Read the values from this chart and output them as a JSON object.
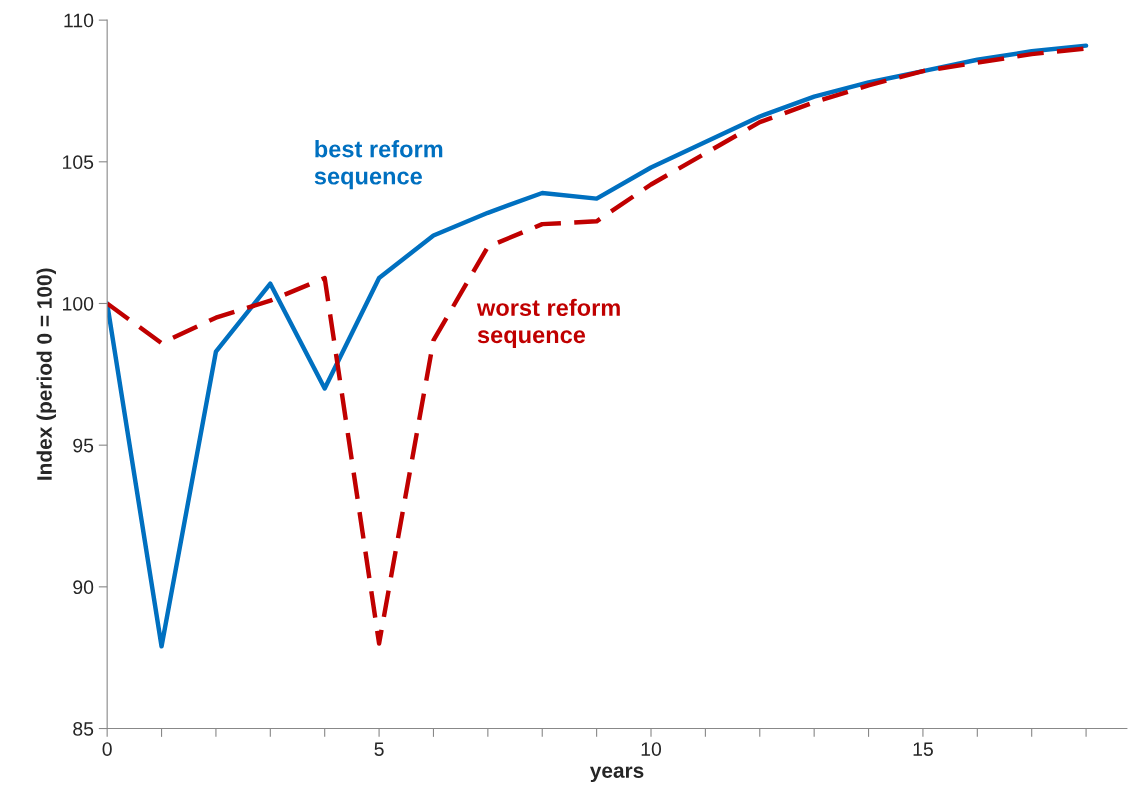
{
  "chart_data": {
    "type": "line",
    "xlabel": "years",
    "ylabel": "Index (period 0 = 100)",
    "x": [
      0,
      1,
      2,
      3,
      4,
      5,
      6,
      7,
      8,
      9,
      10,
      11,
      12,
      13,
      14,
      15,
      16,
      17,
      18
    ],
    "series": [
      {
        "name": "best reform\nsequence",
        "color": "#0070c0",
        "line_style": "solid",
        "values": [
          100,
          87.9,
          98.3,
          100.7,
          97.0,
          100.9,
          102.4,
          103.2,
          103.9,
          103.7,
          104.8,
          105.7,
          106.6,
          107.3,
          107.8,
          108.2,
          108.6,
          108.9,
          109.1
        ]
      },
      {
        "name": "worst reform\nsequence",
        "color": "#c00000",
        "line_style": "dashed",
        "values": [
          100,
          98.6,
          99.5,
          100.1,
          100.9,
          88.0,
          98.7,
          102.0,
          102.8,
          102.9,
          104.2,
          105.3,
          106.4,
          107.1,
          107.7,
          108.2,
          108.5,
          108.8,
          109.0
        ]
      }
    ],
    "xlim": [
      0,
      18.75
    ],
    "ylim": [
      85,
      110
    ],
    "xticks": [
      0,
      {
        "value": 1,
        "label": null
      },
      {
        "value": 2,
        "label": null
      },
      {
        "value": 3,
        "label": null
      },
      {
        "value": 4,
        "label": null
      },
      5,
      {
        "value": 6,
        "label": null
      },
      {
        "value": 7,
        "label": null
      },
      {
        "value": 8,
        "label": null
      },
      {
        "value": 9,
        "label": null
      },
      10,
      {
        "value": 11,
        "label": null
      },
      {
        "value": 12,
        "label": null
      },
      {
        "value": 13,
        "label": null
      },
      {
        "value": 14,
        "label": null
      },
      15,
      {
        "value": 16,
        "label": null
      },
      {
        "value": 17,
        "label": null
      },
      {
        "value": 18,
        "label": null
      }
    ],
    "yticks": [
      85,
      90,
      95,
      100,
      105,
      110
    ],
    "grid": false,
    "legend": false,
    "marker": "none"
  }
}
